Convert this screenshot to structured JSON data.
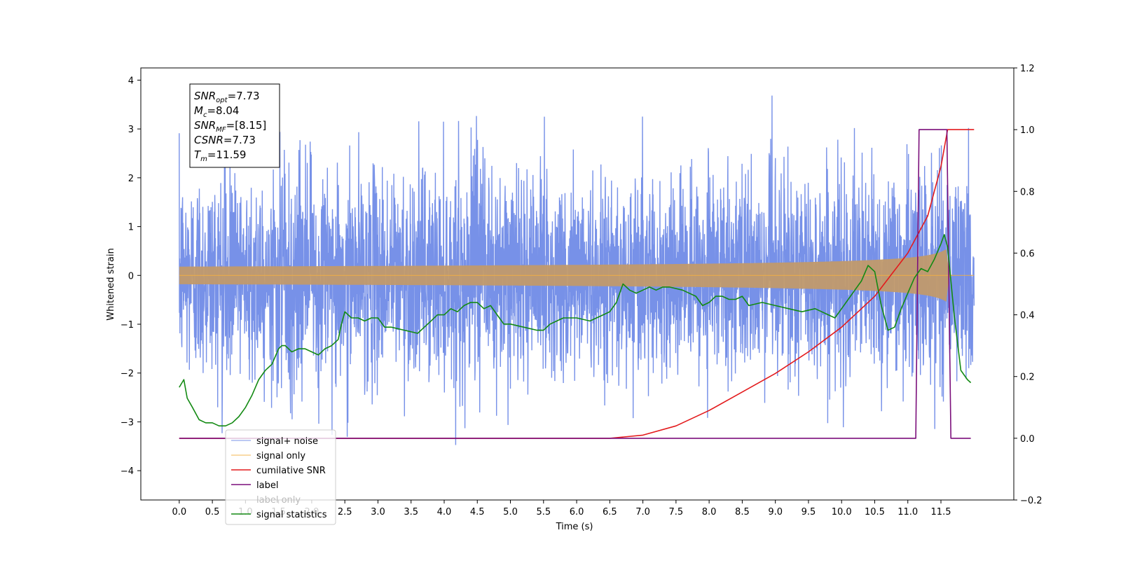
{
  "chart_data": {
    "type": "line",
    "xlabel": "Time (s)",
    "ylabel": "Whitened strain",
    "xlim": [
      -0.58,
      12.6
    ],
    "ylim": [
      -4.6,
      4.25
    ],
    "y2lim": [
      -0.2,
      1.2
    ],
    "x_ticks": [
      "0.0",
      "0.5",
      "1.0",
      "1.5",
      "2.0",
      "2.5",
      "3.0",
      "3.5",
      "4.0",
      "4.5",
      "5.0",
      "5.5",
      "6.0",
      "6.5",
      "7.0",
      "7.5",
      "8.0",
      "8.5",
      "9.0",
      "9.5",
      "10.0",
      "10.5",
      "11.0",
      "11.5"
    ],
    "y_ticks": [
      "4",
      "3",
      "2",
      "1",
      "0",
      "−1",
      "−2",
      "−3",
      "−4"
    ],
    "y2_ticks": [
      "1.2",
      "1.0",
      "0.8",
      "0.6",
      "0.4",
      "0.2",
      "0.0",
      "−0.2"
    ],
    "annotation": {
      "lines": [
        {
          "sym": "SNR",
          "sub": "opt",
          "val": "=7.73"
        },
        {
          "sym": "M",
          "sub": "c",
          "val": "=8.04"
        },
        {
          "sym": "SNR",
          "sub": "MF",
          "val": "=[8.15]"
        },
        {
          "sym": "CSNR",
          "sub": "",
          "val": "=7.73"
        },
        {
          "sym": "T",
          "sub": "m",
          "val": "=11.59"
        }
      ]
    },
    "legend_placement": "lower-left",
    "series": [
      {
        "name": "signal+ noise",
        "color": "#6b88e6",
        "axis": "left",
        "kind": "noise",
        "x_range": [
          0,
          12
        ],
        "amplitude_range": [
          -3.5,
          3.9
        ],
        "merger_time": 11.59
      },
      {
        "name": "signal only",
        "color": "#f5b041",
        "axis": "left",
        "kind": "chirp",
        "x_range": [
          0,
          12
        ],
        "merger_time": 11.59,
        "peak_amplitude": 0.55
      },
      {
        "name": "cumilative SNR",
        "color": "#e31a1c",
        "axis": "right",
        "x": [
          0,
          6.5,
          7.0,
          7.5,
          8.0,
          8.5,
          9.0,
          9.5,
          10.0,
          10.5,
          11.0,
          11.3,
          11.5,
          11.6,
          12.0
        ],
        "y": [
          0,
          0.0,
          0.01,
          0.04,
          0.09,
          0.15,
          0.21,
          0.28,
          0.36,
          0.46,
          0.6,
          0.72,
          0.88,
          1.0,
          1.0
        ]
      },
      {
        "name": "label",
        "color": "#7b0f7b",
        "axis": "right",
        "x": [
          0,
          11.12,
          11.17,
          11.59,
          11.65,
          11.95
        ],
        "y": [
          0,
          0,
          1.0,
          1.0,
          0,
          0
        ]
      },
      {
        "name": "label only",
        "color": "#999999",
        "axis": "right",
        "hidden": true
      },
      {
        "name": "signal statistics",
        "color": "#138a13",
        "axis": "right",
        "x": [
          0,
          0.07,
          0.12,
          0.2,
          0.3,
          0.4,
          0.5,
          0.6,
          0.7,
          0.8,
          0.9,
          1.0,
          1.1,
          1.2,
          1.3,
          1.4,
          1.5,
          1.55,
          1.6,
          1.7,
          1.8,
          1.9,
          2.0,
          2.1,
          2.2,
          2.3,
          2.4,
          2.45,
          2.5,
          2.6,
          2.7,
          2.8,
          2.9,
          3.0,
          3.1,
          3.2,
          3.4,
          3.6,
          3.8,
          3.9,
          4.0,
          4.1,
          4.2,
          4.3,
          4.4,
          4.5,
          4.6,
          4.7,
          4.8,
          4.9,
          5.0,
          5.2,
          5.4,
          5.5,
          5.6,
          5.7,
          5.8,
          6.0,
          6.2,
          6.4,
          6.5,
          6.6,
          6.7,
          6.8,
          6.9,
          7.0,
          7.1,
          7.2,
          7.3,
          7.4,
          7.6,
          7.8,
          7.9,
          8.0,
          8.1,
          8.2,
          8.3,
          8.4,
          8.5,
          8.6,
          8.8,
          9.0,
          9.2,
          9.4,
          9.6,
          9.7,
          9.8,
          9.9,
          10.0,
          10.1,
          10.2,
          10.3,
          10.4,
          10.5,
          10.6,
          10.7,
          10.8,
          10.9,
          11.0,
          11.1,
          11.2,
          11.3,
          11.4,
          11.5,
          11.55,
          11.6,
          11.7,
          11.8,
          11.9,
          11.95
        ],
        "y": [
          0.165,
          0.19,
          0.13,
          0.1,
          0.06,
          0.05,
          0.05,
          0.04,
          0.04,
          0.05,
          0.07,
          0.1,
          0.14,
          0.19,
          0.22,
          0.24,
          0.29,
          0.3,
          0.3,
          0.28,
          0.29,
          0.29,
          0.28,
          0.27,
          0.29,
          0.3,
          0.32,
          0.37,
          0.41,
          0.39,
          0.39,
          0.38,
          0.39,
          0.39,
          0.36,
          0.36,
          0.35,
          0.34,
          0.38,
          0.4,
          0.4,
          0.42,
          0.41,
          0.43,
          0.44,
          0.44,
          0.42,
          0.43,
          0.4,
          0.37,
          0.37,
          0.36,
          0.35,
          0.35,
          0.37,
          0.38,
          0.39,
          0.39,
          0.38,
          0.4,
          0.41,
          0.44,
          0.5,
          0.48,
          0.47,
          0.48,
          0.49,
          0.48,
          0.49,
          0.49,
          0.48,
          0.46,
          0.43,
          0.44,
          0.46,
          0.46,
          0.45,
          0.45,
          0.46,
          0.43,
          0.44,
          0.43,
          0.42,
          0.41,
          0.42,
          0.41,
          0.4,
          0.39,
          0.42,
          0.45,
          0.48,
          0.51,
          0.56,
          0.54,
          0.43,
          0.35,
          0.36,
          0.42,
          0.47,
          0.52,
          0.55,
          0.54,
          0.58,
          0.63,
          0.66,
          0.62,
          0.4,
          0.22,
          0.19,
          0.18
        ]
      }
    ]
  }
}
